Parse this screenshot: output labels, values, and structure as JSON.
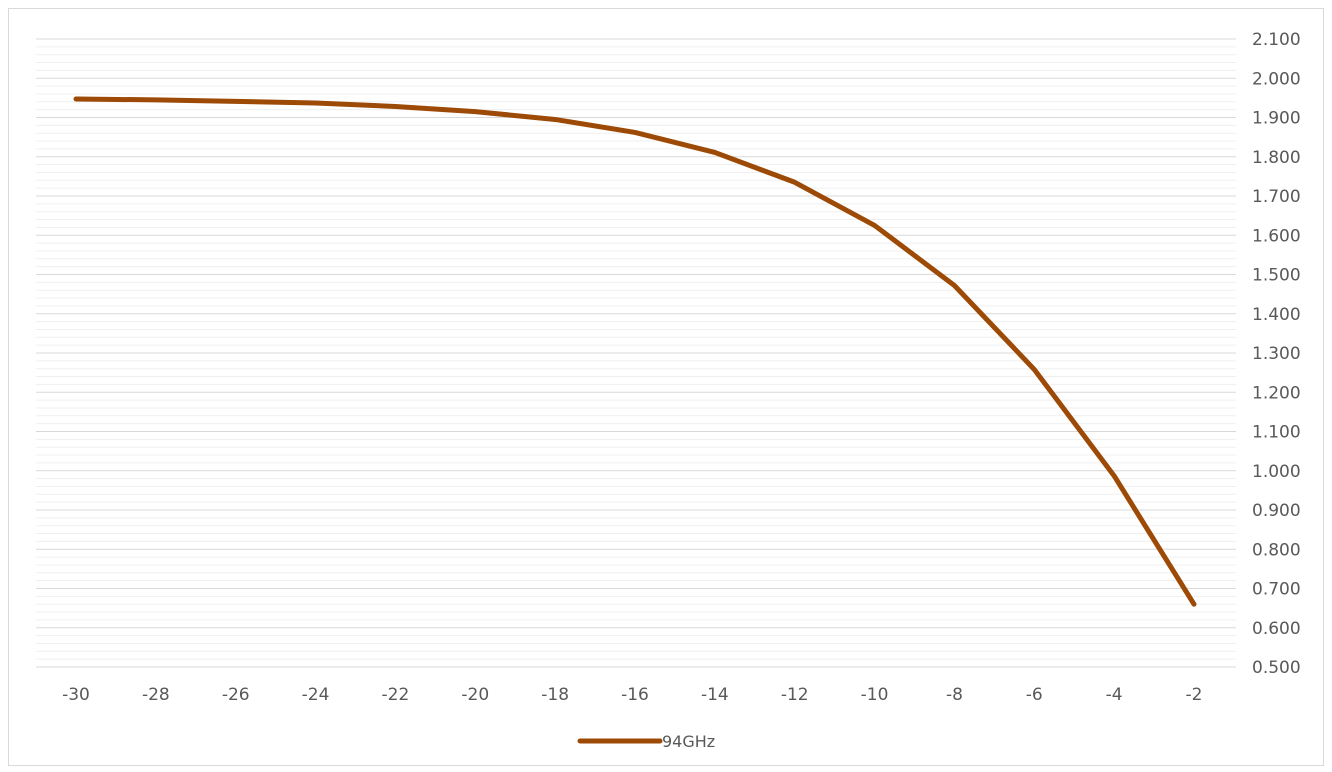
{
  "chart_data": {
    "type": "line",
    "title": "",
    "xlabel": "",
    "ylabel": "",
    "x": [
      -30,
      -28,
      -26,
      -24,
      -22,
      -20,
      -18,
      -16,
      -14,
      -12,
      -10,
      -8,
      -6,
      -4,
      -2
    ],
    "x_tick_labels": [
      "-30",
      "-28",
      "-26",
      "-24",
      "-22",
      "-20",
      "-18",
      "-16",
      "-14",
      "-12",
      "-10",
      "-8",
      "-6",
      "-4",
      "-2"
    ],
    "y_tick_labels": [
      "0.500",
      "0.600",
      "0.700",
      "0.800",
      "0.900",
      "1.000",
      "1.100",
      "1.200",
      "1.300",
      "1.400",
      "1.500",
      "1.600",
      "1.700",
      "1.800",
      "1.900",
      "2.000",
      "2.100"
    ],
    "ylim": [
      0.5,
      2.1
    ],
    "y_axis_side": "right",
    "grid": true,
    "minor_grid": true,
    "legend_position": "bottom",
    "series": [
      {
        "name": "94GHz",
        "color": "#9c4a06",
        "values": [
          1.947,
          1.945,
          1.941,
          1.937,
          1.928,
          1.915,
          1.895,
          1.862,
          1.811,
          1.735,
          1.625,
          1.472,
          1.258,
          0.987,
          0.66
        ]
      }
    ]
  }
}
